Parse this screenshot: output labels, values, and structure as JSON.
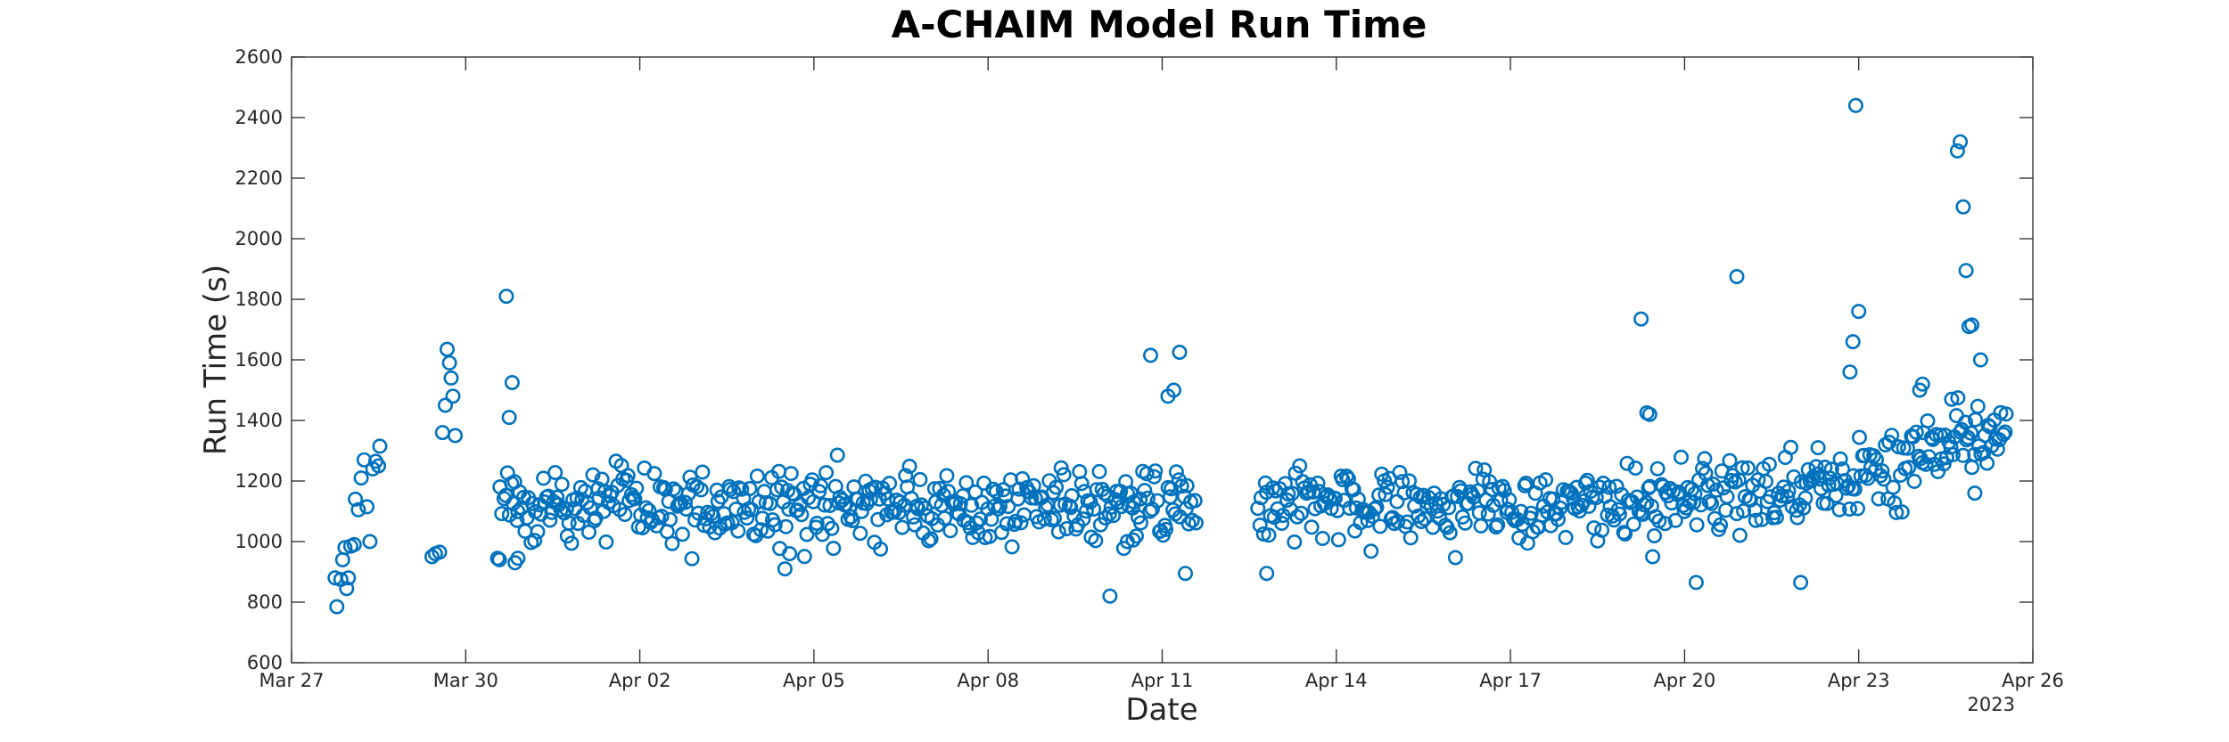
{
  "chart_data": {
    "type": "scatter",
    "title": "A-CHAIM Model Run Time",
    "xlabel": "Date",
    "ylabel": "Run Time (s)",
    "x_units": "days since Mar 27 (2023)",
    "xlim": [
      0,
      30
    ],
    "ylim": [
      600,
      2600
    ],
    "x_ticks": [
      {
        "x": 0,
        "label": "Mar 27"
      },
      {
        "x": 3,
        "label": "Mar 30"
      },
      {
        "x": 6,
        "label": "Apr 02"
      },
      {
        "x": 9,
        "label": "Apr 05"
      },
      {
        "x": 12,
        "label": "Apr 08"
      },
      {
        "x": 15,
        "label": "Apr 11"
      },
      {
        "x": 18,
        "label": "Apr 14"
      },
      {
        "x": 21,
        "label": "Apr 17"
      },
      {
        "x": 24,
        "label": "Apr 20"
      },
      {
        "x": 27,
        "label": "Apr 23"
      },
      {
        "x": 30,
        "label": "Apr 26"
      }
    ],
    "y_ticks": [
      600,
      800,
      1000,
      1200,
      1400,
      1600,
      1800,
      2000,
      2200,
      2400,
      2600
    ],
    "year_label": "2023",
    "grid": false,
    "marker": "circle",
    "color": "#0072BD",
    "gap": [
      15.7,
      16.6
    ],
    "series": [
      {
        "points": [
          [
            0.78,
            785
          ],
          [
            0.75,
            880
          ],
          [
            0.85,
            875
          ],
          [
            0.88,
            940
          ],
          [
            0.92,
            980
          ],
          [
            0.95,
            845
          ],
          [
            0.98,
            880
          ],
          [
            1.02,
            985
          ],
          [
            1.08,
            990
          ],
          [
            1.1,
            1140
          ],
          [
            1.15,
            1105
          ],
          [
            1.2,
            1210
          ],
          [
            1.25,
            1270
          ],
          [
            1.3,
            1115
          ],
          [
            1.35,
            1000
          ],
          [
            1.4,
            1240
          ],
          [
            1.45,
            1265
          ],
          [
            1.5,
            1250
          ],
          [
            1.52,
            1315
          ],
          [
            2.42,
            950
          ],
          [
            2.48,
            960
          ],
          [
            2.55,
            965
          ],
          [
            2.6,
            1360
          ],
          [
            2.65,
            1450
          ],
          [
            2.68,
            1635
          ],
          [
            2.72,
            1590
          ],
          [
            2.75,
            1540
          ],
          [
            2.78,
            1480
          ],
          [
            2.82,
            1350
          ],
          [
            3.55,
            945
          ],
          [
            3.58,
            940
          ],
          [
            3.7,
            1810
          ],
          [
            3.75,
            1410
          ],
          [
            3.8,
            1525
          ],
          [
            3.85,
            930
          ],
          [
            3.9,
            945
          ],
          [
            8.5,
            910
          ],
          [
            8.58,
            960
          ],
          [
            14.1,
            820
          ],
          [
            14.4,
            1000
          ],
          [
            14.5,
            1005
          ],
          [
            14.8,
            1615
          ],
          [
            15.3,
            1625
          ],
          [
            15.2,
            1500
          ],
          [
            15.1,
            1480
          ],
          [
            15.4,
            895
          ],
          [
            16.8,
            895
          ],
          [
            23.25,
            1735
          ],
          [
            23.35,
            1425
          ],
          [
            23.4,
            1420
          ],
          [
            23.45,
            950
          ],
          [
            24.2,
            865
          ],
          [
            24.9,
            1875
          ],
          [
            26.0,
            865
          ],
          [
            26.3,
            1310
          ],
          [
            26.85,
            1560
          ],
          [
            26.9,
            1660
          ],
          [
            26.95,
            2440
          ],
          [
            27.0,
            1760
          ],
          [
            28.05,
            1500
          ],
          [
            28.1,
            1520
          ],
          [
            28.6,
            1470
          ],
          [
            28.7,
            2290
          ],
          [
            28.75,
            2320
          ],
          [
            28.8,
            2105
          ],
          [
            28.85,
            1895
          ],
          [
            28.9,
            1710
          ],
          [
            28.95,
            1715
          ],
          [
            29.0,
            1160
          ],
          [
            29.1,
            1600
          ]
        ]
      }
    ]
  }
}
